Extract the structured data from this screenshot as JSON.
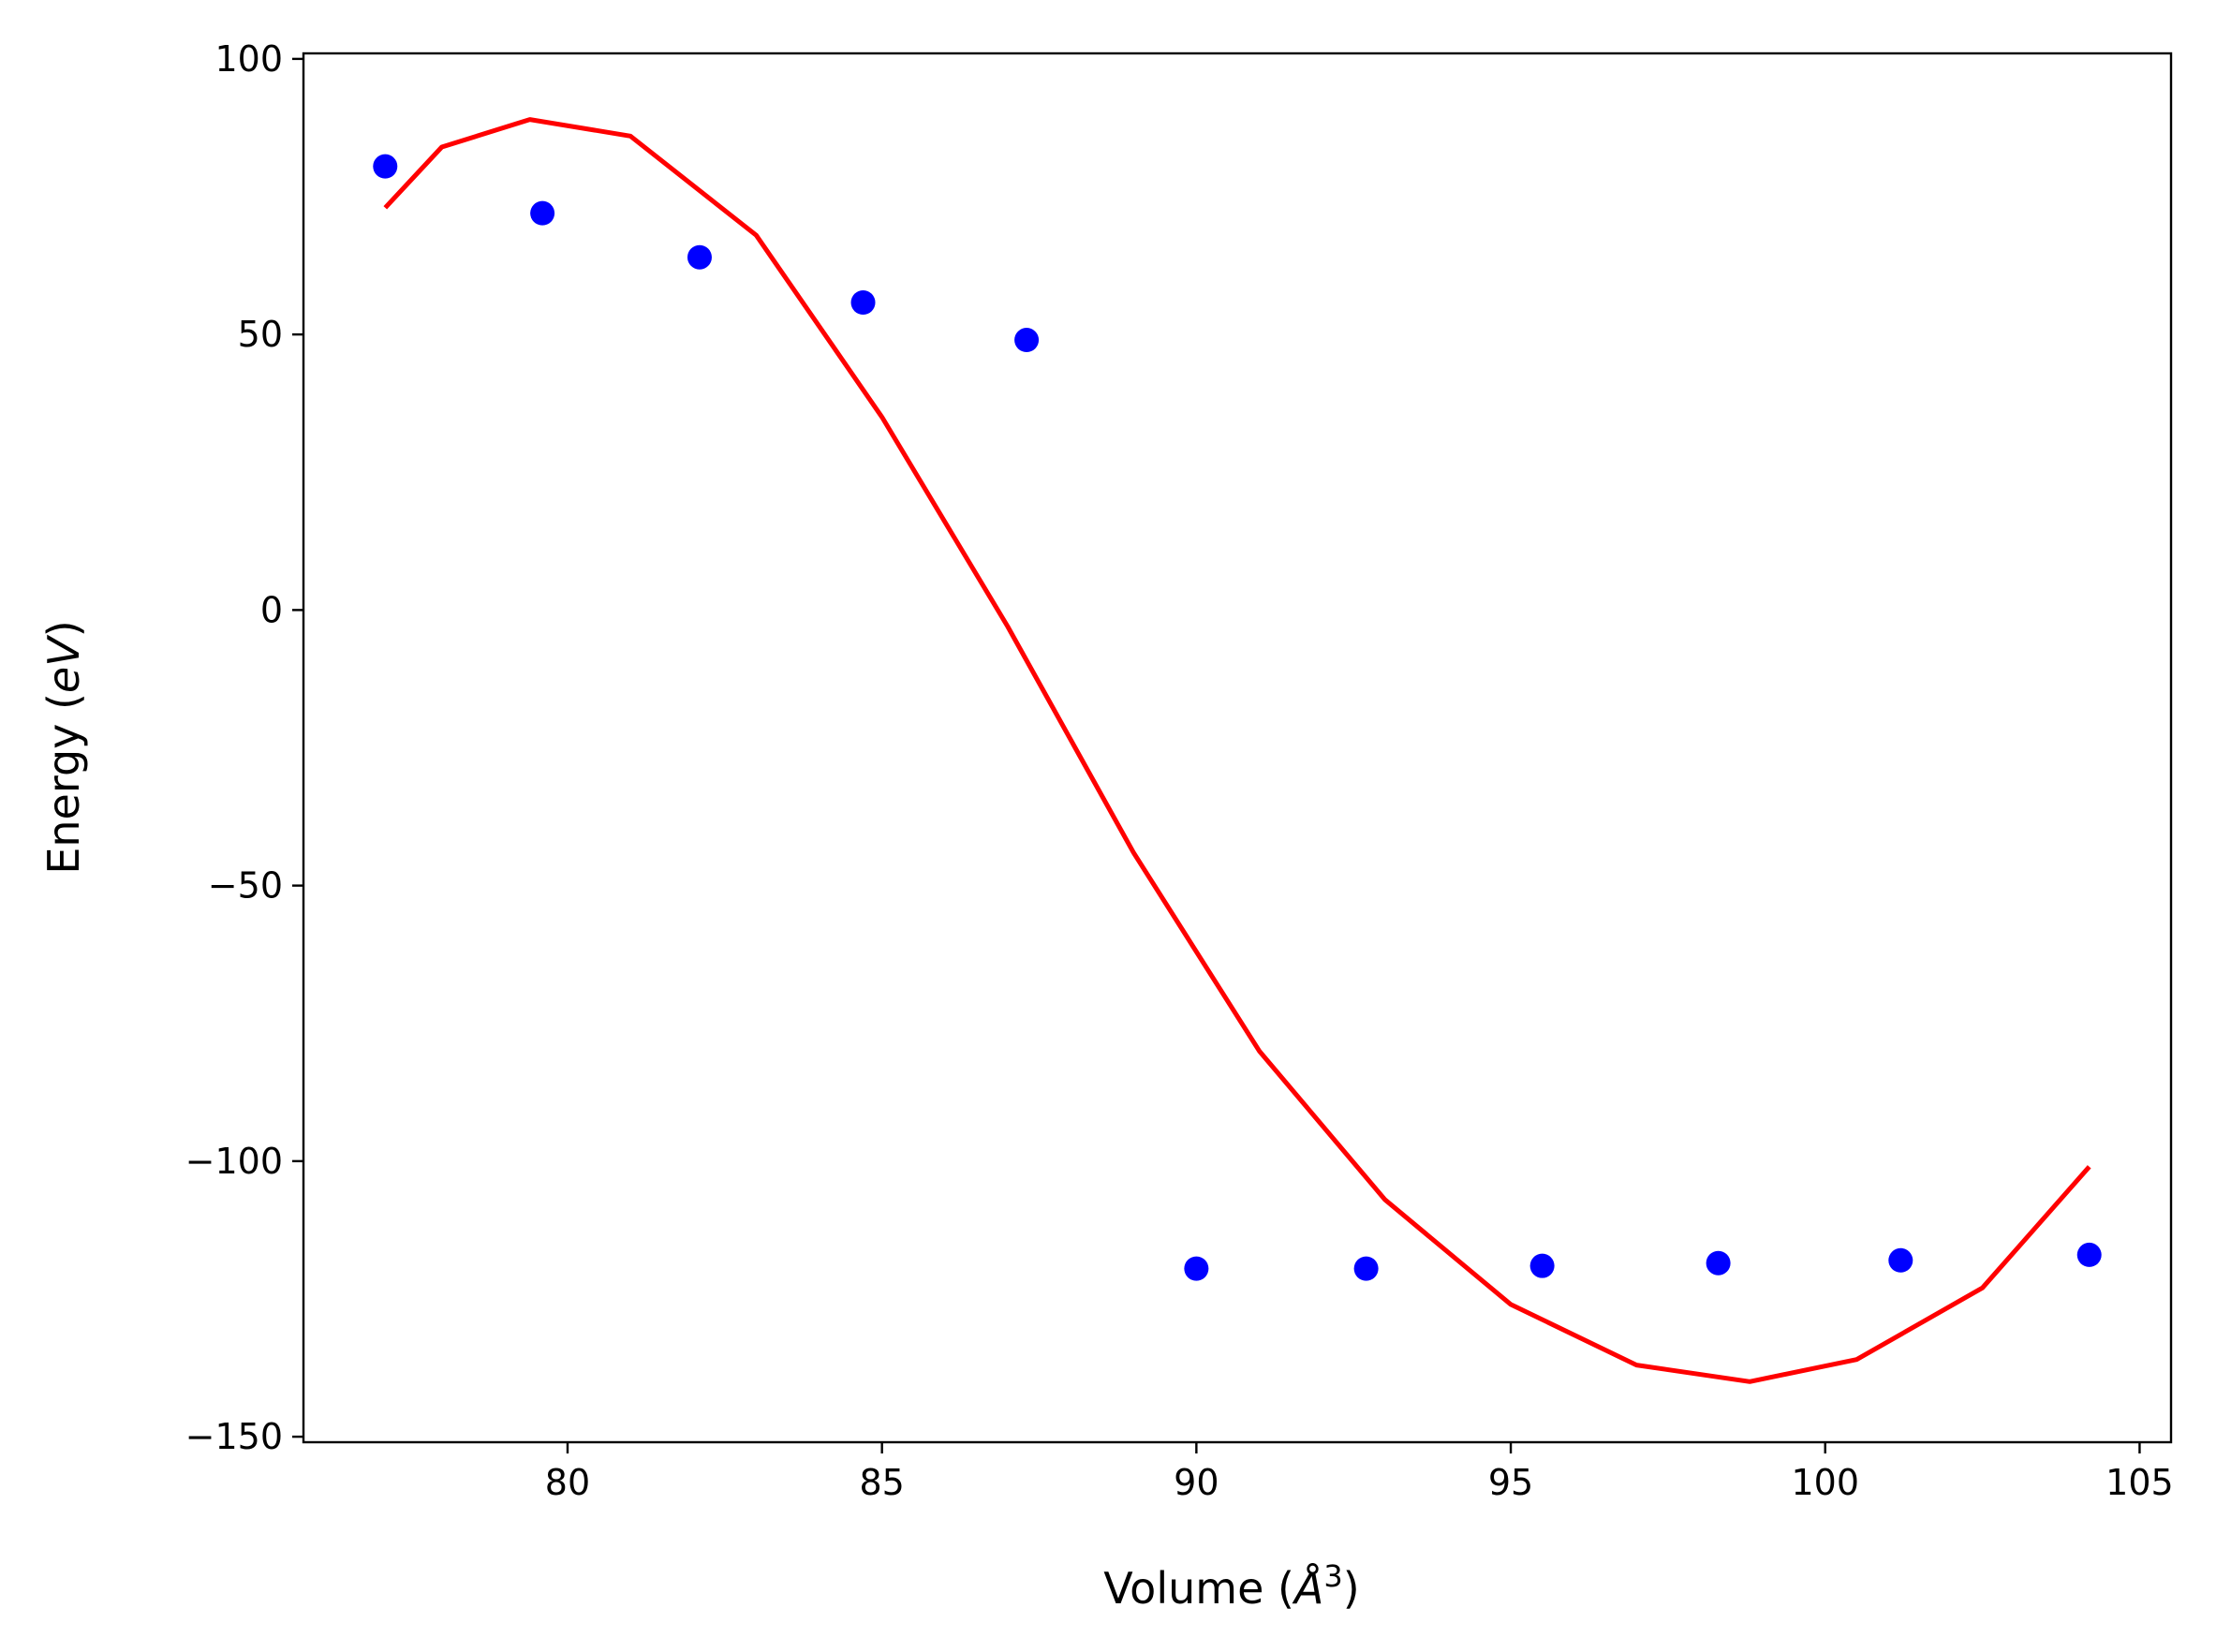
{
  "chart_data": {
    "type": "scatter",
    "xlabel": "Volume (",
    "xlabel_unit": "Å",
    "xlabel_exp": "3",
    "xlabel_close": ")",
    "ylabel": "Energy (",
    "ylabel_unit": "eV",
    "ylabel_close": ")",
    "xlim": [
      75.8,
      105.5
    ],
    "ylim": [
      -151,
      101
    ],
    "x_ticks": [
      80,
      85,
      90,
      95,
      100,
      105
    ],
    "x_tick_labels": [
      "80",
      "85",
      "90",
      "95",
      "100",
      "105"
    ],
    "y_ticks": [
      100,
      50,
      0,
      -50,
      -100,
      -150
    ],
    "y_tick_labels": [
      "100",
      "50",
      "0",
      "−50",
      "−100",
      "−150"
    ],
    "grid": false,
    "series": [
      {
        "kind": "points",
        "color": "#0000ff",
        "x": [
          77.1,
          79.6,
          82.1,
          84.7,
          87.3,
          90.0,
          92.7,
          95.5,
          98.3,
          101.2,
          104.2
        ],
        "y": [
          80.5,
          72.0,
          64.0,
          55.8,
          49.0,
          -119.5,
          -119.5,
          -119.0,
          -118.5,
          -118.0,
          -117.0
        ]
      },
      {
        "kind": "fit-line",
        "color": "#ff0000",
        "x": [
          77.1,
          78.0,
          79.4,
          81.0,
          83.0,
          85.0,
          87.0,
          89.0,
          91.0,
          93.0,
          95.0,
          97.0,
          98.8,
          100.5,
          102.5,
          104.2
        ],
        "y": [
          73.0,
          84.0,
          89.0,
          86.0,
          68.0,
          35.0,
          -3.0,
          -44.0,
          -80.0,
          -107.0,
          -126.0,
          -137.0,
          -140.0,
          -136.0,
          -123.0,
          -101.0
        ]
      }
    ]
  }
}
